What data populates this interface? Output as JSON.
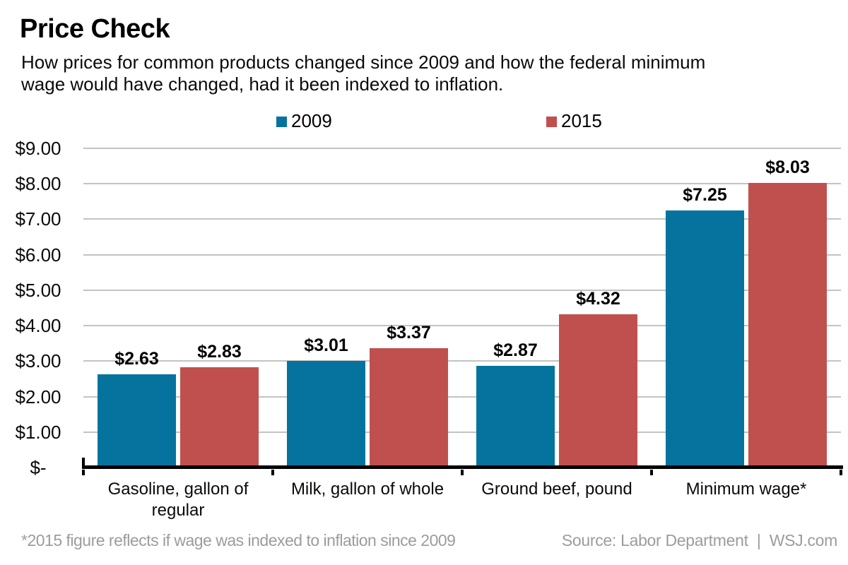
{
  "page": {
    "title": "Price Check",
    "subtitle_lines": [
      "How prices for common products changed since 2009 and how the federal minimum",
      "wage would have changed, had it been indexed to inflation."
    ],
    "footnote": "*2015 figure reflects if wage was indexed to inflation since 2009",
    "source": "Source: Labor Department  |  WSJ.com"
  },
  "colors": {
    "series_2009": "#06739F",
    "series_2015": "#C0504E",
    "gridline": "#C3C3C3",
    "axis": "#000000",
    "footer_text": "#9C9C9C"
  },
  "chart_data": {
    "type": "bar",
    "title": "Price Check",
    "subtitle": "How prices for common products changed since 2009 and how the federal minimum wage would have changed, had it been indexed to inflation.",
    "categories": [
      "Gasoline, gallon of regular",
      "Milk, gallon of whole",
      "Ground beef, pound",
      "Minimum wage*"
    ],
    "series": [
      {
        "name": "2009",
        "color": "#06739F",
        "values": [
          2.63,
          3.01,
          2.87,
          7.25
        ],
        "data_labels": [
          "$2.63",
          "$3.01",
          "$2.87",
          "$7.25"
        ]
      },
      {
        "name": "2015",
        "color": "#C0504E",
        "values": [
          2.83,
          3.37,
          4.32,
          8.03
        ],
        "data_labels": [
          "$2.83",
          "$3.37",
          "$4.32",
          "$8.03"
        ]
      }
    ],
    "y_ticks": [
      "$9.00",
      "$8.00",
      "$7.00",
      "$6.00",
      "$5.00",
      "$4.00",
      "$3.00",
      "$2.00",
      "$1.00",
      "$-"
    ],
    "ylim": [
      0,
      9
    ],
    "grid": true,
    "legend_position": "top-inside",
    "footnote": "*2015 figure reflects if wage was indexed to inflation since 2009",
    "source": "Source: Labor Department  |  WSJ.com"
  }
}
